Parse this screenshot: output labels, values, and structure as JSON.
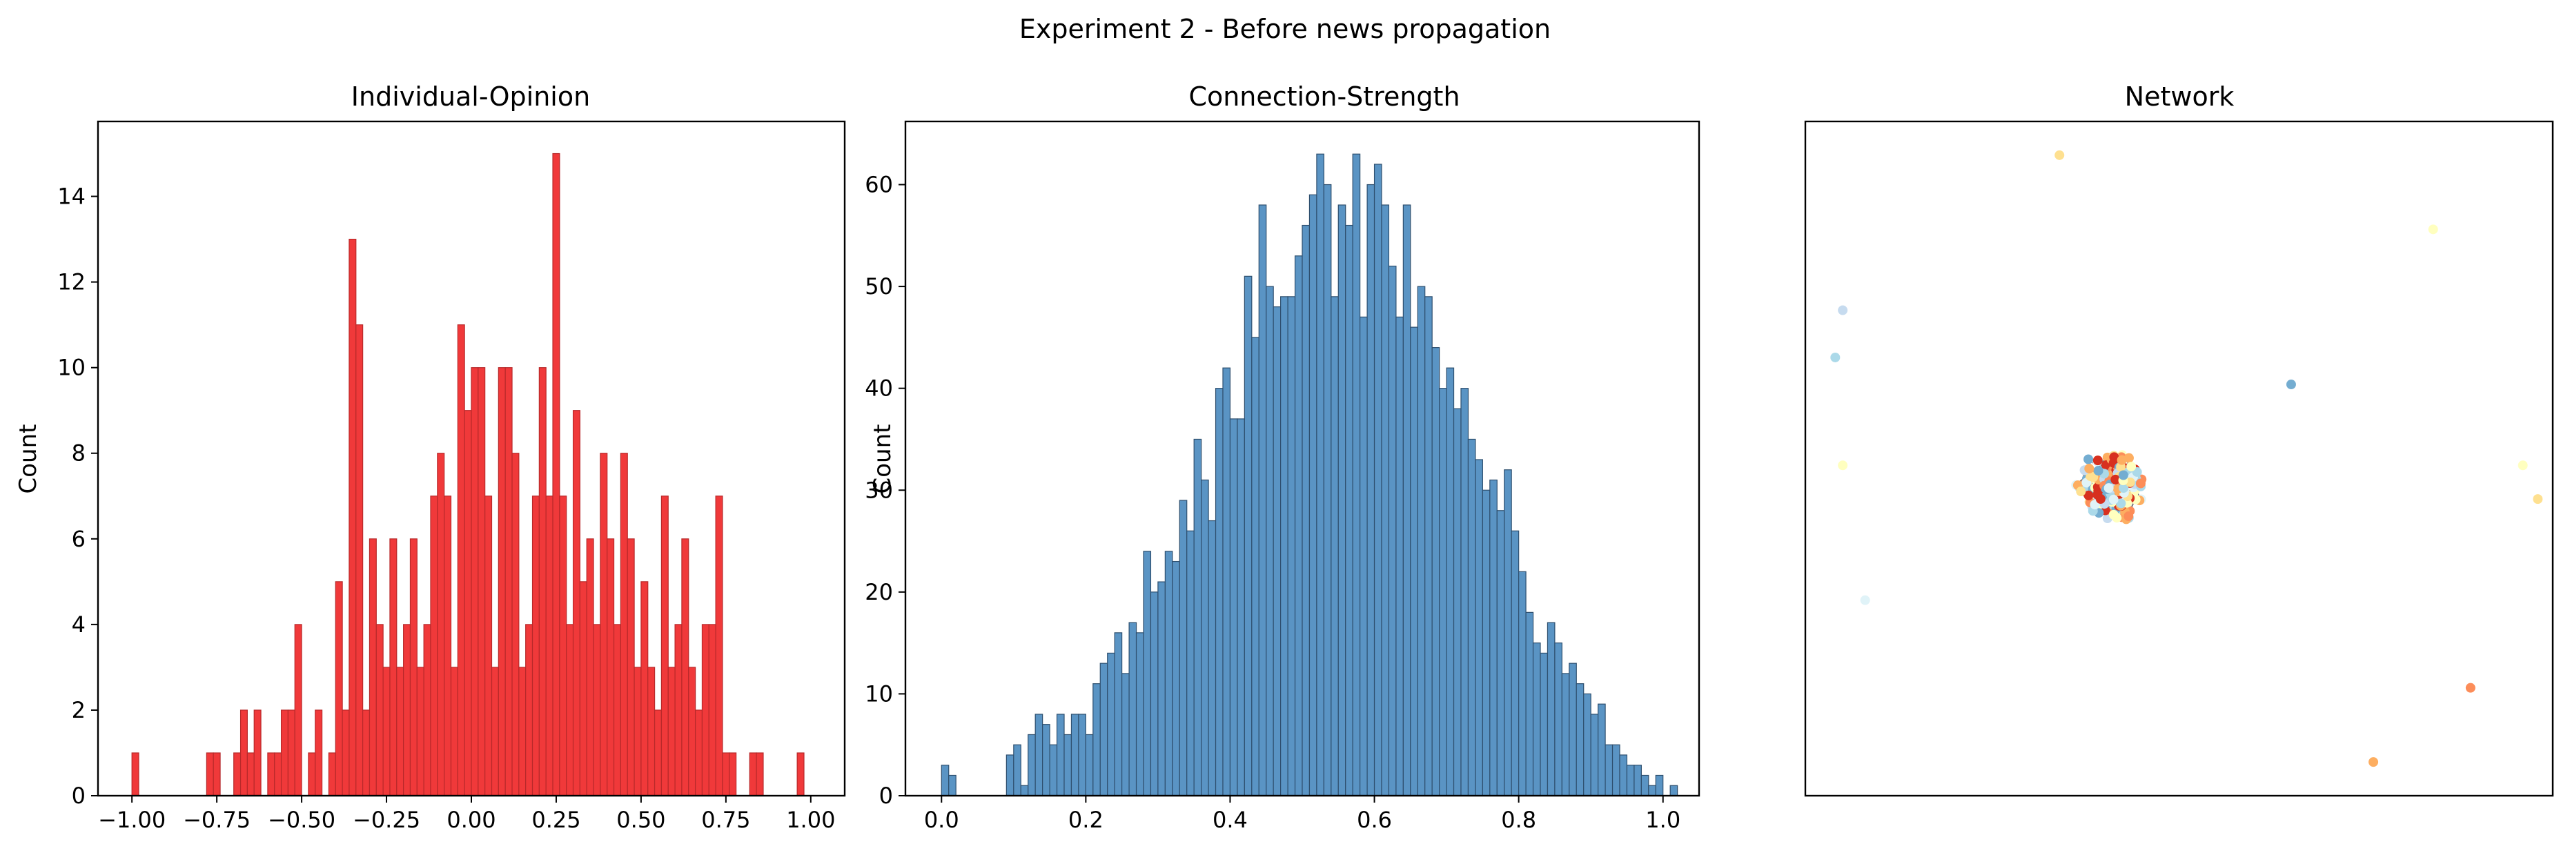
{
  "figure": {
    "suptitle": "Experiment 2 - Before news propagation"
  },
  "chart_data": [
    {
      "type": "bar",
      "title": "Individual-Opinion",
      "xlabel": "",
      "ylabel": "Count",
      "xlim": [
        -1.1,
        1.1
      ],
      "ylim": [
        0,
        15.75
      ],
      "xticks": [
        -1.0,
        -0.75,
        -0.5,
        -0.25,
        0.0,
        0.25,
        0.5,
        0.75,
        1.0
      ],
      "xtick_labels": [
        "−1.00",
        "−0.75",
        "−0.50",
        "−0.25",
        "0.00",
        "0.25",
        "0.50",
        "0.75",
        "1.00"
      ],
      "yticks": [
        0,
        2,
        4,
        6,
        8,
        10,
        12,
        14
      ],
      "bin_start": -1.0,
      "bin_width": 0.02,
      "bar_color": "#f0393a",
      "edge_color": "#b8292a",
      "counts": [
        1,
        0,
        0,
        0,
        0,
        0,
        0,
        0,
        0,
        0,
        0,
        1,
        1,
        0,
        0,
        1,
        2,
        1,
        2,
        0,
        1,
        1,
        2,
        2,
        4,
        0,
        1,
        2,
        0,
        1,
        5,
        2,
        13,
        11,
        2,
        6,
        4,
        3,
        6,
        3,
        4,
        6,
        3,
        4,
        7,
        8,
        7,
        3,
        11,
        9,
        10,
        10,
        7,
        3,
        10,
        10,
        8,
        3,
        4,
        7,
        10,
        7,
        15,
        7,
        4,
        9,
        5,
        6,
        4,
        8,
        6,
        4,
        8,
        6,
        3,
        5,
        3,
        2,
        7,
        3,
        4,
        6,
        3,
        2,
        4,
        4,
        7,
        1,
        1,
        0,
        0,
        1,
        1,
        0,
        0,
        0,
        0,
        0,
        1,
        0
      ]
    },
    {
      "type": "bar",
      "title": "Connection-Strength",
      "xlabel": "",
      "ylabel": "Count",
      "xlim": [
        -0.05,
        1.05
      ],
      "ylim": [
        0,
        66.2
      ],
      "xticks": [
        0.0,
        0.2,
        0.4,
        0.6,
        0.8,
        1.0
      ],
      "xtick_labels": [
        "0.0",
        "0.2",
        "0.4",
        "0.6",
        "0.8",
        "1.0"
      ],
      "yticks": [
        0,
        10,
        20,
        30,
        40,
        50,
        60
      ],
      "bin_start": 0.0,
      "bin_width": 0.01,
      "bar_color": "#5a94c4",
      "edge_color": "#2e4f6e",
      "counts": [
        3,
        2,
        0,
        0,
        0,
        0,
        0,
        0,
        0,
        4,
        5,
        1,
        6,
        8,
        7,
        5,
        8,
        6,
        8,
        8,
        6,
        11,
        13,
        14,
        16,
        12,
        17,
        16,
        24,
        20,
        21,
        24,
        23,
        29,
        26,
        35,
        31,
        27,
        40,
        42,
        37,
        37,
        51,
        45,
        58,
        50,
        48,
        49,
        49,
        53,
        56,
        59,
        63,
        60,
        49,
        58,
        56,
        63,
        47,
        60,
        62,
        58,
        52,
        47,
        58,
        46,
        50,
        49,
        44,
        40,
        42,
        38,
        40,
        35,
        33,
        30,
        31,
        28,
        32,
        26,
        22,
        18,
        15,
        14,
        17,
        15,
        12,
        13,
        11,
        10,
        8,
        9,
        5,
        5,
        4,
        3,
        3,
        2,
        1,
        2,
        0,
        1
      ]
    },
    {
      "type": "scatter",
      "title": "Network",
      "xlabel": "",
      "ylabel": "",
      "edge_color": "#555555",
      "node_palette": [
        "#d7301f",
        "#fc8d59",
        "#fdae61",
        "#fee090",
        "#ffffbf",
        "#e0f3f8",
        "#abd9e9",
        "#74add1",
        "#c6dbef"
      ],
      "outlier_nodes": [
        {
          "x": 0.34,
          "y": 0.95,
          "color": "#fee090"
        },
        {
          "x": 0.84,
          "y": 0.84,
          "color": "#ffffbf"
        },
        {
          "x": 0.05,
          "y": 0.72,
          "color": "#c6dbef"
        },
        {
          "x": 0.04,
          "y": 0.65,
          "color": "#abd9e9"
        },
        {
          "x": 0.96,
          "y": 0.49,
          "color": "#ffffbf"
        },
        {
          "x": 0.98,
          "y": 0.44,
          "color": "#fee090"
        },
        {
          "x": 0.05,
          "y": 0.49,
          "color": "#ffffbf"
        },
        {
          "x": 0.08,
          "y": 0.29,
          "color": "#e0f3f8"
        },
        {
          "x": 0.89,
          "y": 0.16,
          "color": "#fc8d59"
        },
        {
          "x": 0.76,
          "y": 0.05,
          "color": "#fdae61"
        },
        {
          "x": 0.65,
          "y": 0.61,
          "color": "#74add1"
        }
      ]
    }
  ]
}
